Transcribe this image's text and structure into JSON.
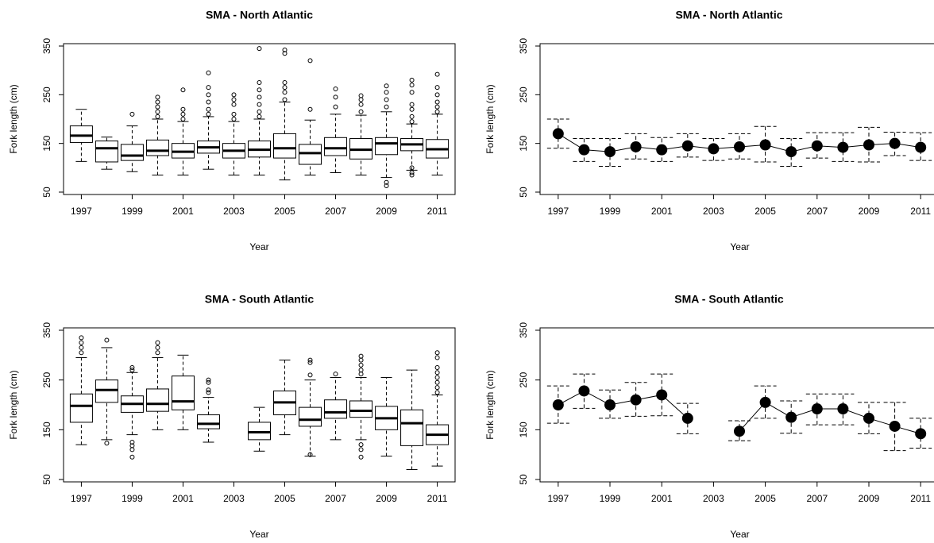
{
  "chart_data": [
    {
      "type": "box",
      "title": "SMA - North Atlantic",
      "x_label": "Year",
      "y_label": "Fork length (cm)",
      "xlim": [
        1996.3,
        2011.7
      ],
      "xticks": [
        1997,
        1999,
        2001,
        2003,
        2005,
        2007,
        2009,
        2011
      ],
      "ylim": [
        50,
        350
      ],
      "yticks": [
        50,
        150,
        250,
        350
      ],
      "x": [
        1997,
        1998,
        1999,
        2000,
        2001,
        2002,
        2003,
        2004,
        2005,
        2006,
        2007,
        2008,
        2009,
        2010,
        2011
      ],
      "min": [
        113,
        97,
        92,
        85,
        85,
        97,
        85,
        85,
        75,
        85,
        90,
        85,
        80,
        95,
        85
      ],
      "q1": [
        152,
        112,
        115,
        125,
        120,
        130,
        120,
        122,
        120,
        107,
        125,
        118,
        127,
        135,
        120
      ],
      "median": [
        166,
        140,
        125,
        135,
        133,
        142,
        135,
        137,
        140,
        130,
        140,
        137,
        150,
        148,
        138
      ],
      "q3": [
        186,
        155,
        148,
        157,
        150,
        155,
        150,
        155,
        170,
        148,
        162,
        160,
        162,
        160,
        158
      ],
      "max": [
        220,
        163,
        186,
        200,
        195,
        205,
        195,
        200,
        235,
        198,
        210,
        208,
        215,
        190,
        210
      ],
      "outliers": [
        [],
        [],
        [
          210
        ],
        [
          205,
          215,
          225,
          235,
          245
        ],
        [
          200,
          210,
          220,
          260
        ],
        [
          210,
          220,
          235,
          250,
          265,
          295
        ],
        [
          200,
          210,
          230,
          240,
          250
        ],
        [
          205,
          215,
          230,
          245,
          260,
          275,
          345
        ],
        [
          240,
          255,
          265,
          275,
          335,
          342
        ],
        [
          220,
          320
        ],
        [
          225,
          245,
          262
        ],
        [
          215,
          230,
          240,
          248
        ],
        [
          63,
          70,
          225,
          240,
          255,
          268
        ],
        [
          85,
          90,
          100,
          195,
          205,
          220,
          230,
          255,
          270,
          280
        ],
        [
          215,
          225,
          235,
          250,
          265,
          292
        ]
      ]
    },
    {
      "type": "errorbar",
      "title": "SMA - North Atlantic",
      "x_label": "Year",
      "y_label": "Fork length (cm)",
      "xlim": [
        1996.3,
        2011.7
      ],
      "xticks": [
        1997,
        1999,
        2001,
        2003,
        2005,
        2007,
        2009,
        2011
      ],
      "ylim": [
        50,
        350
      ],
      "yticks": [
        50,
        150,
        250,
        350
      ],
      "x": [
        1997,
        1998,
        1999,
        2000,
        2001,
        2002,
        2003,
        2004,
        2005,
        2006,
        2007,
        2008,
        2009,
        2010,
        2011
      ],
      "values": [
        170,
        137,
        133,
        143,
        137,
        145,
        139,
        143,
        147,
        133,
        145,
        142,
        147,
        150,
        142
      ],
      "lower": [
        140,
        113,
        103,
        118,
        113,
        122,
        115,
        118,
        112,
        103,
        120,
        113,
        112,
        125,
        115
      ],
      "upper": [
        200,
        160,
        160,
        170,
        162,
        170,
        160,
        170,
        185,
        160,
        172,
        172,
        183,
        173,
        172
      ]
    },
    {
      "type": "box",
      "title": "SMA - South Atlantic",
      "x_label": "Year",
      "y_label": "Fork length (cm)",
      "xlim": [
        1996.3,
        2011.7
      ],
      "xticks": [
        1997,
        1999,
        2001,
        2003,
        2005,
        2007,
        2009,
        2011
      ],
      "ylim": [
        50,
        350
      ],
      "yticks": [
        50,
        150,
        250,
        350
      ],
      "x": [
        1997,
        1998,
        1999,
        2000,
        2001,
        2002,
        2003,
        2004,
        2005,
        2006,
        2007,
        2008,
        2009,
        2010,
        2011
      ],
      "min": [
        120,
        130,
        140,
        150,
        150,
        125,
        null,
        107,
        140,
        97,
        130,
        130,
        97,
        70,
        77
      ],
      "q1": [
        165,
        205,
        185,
        187,
        190,
        152,
        null,
        130,
        180,
        157,
        173,
        175,
        150,
        118,
        120
      ],
      "median": [
        198,
        230,
        202,
        202,
        207,
        162,
        null,
        145,
        205,
        170,
        185,
        188,
        173,
        163,
        140
      ],
      "q3": [
        222,
        250,
        218,
        232,
        258,
        180,
        null,
        165,
        228,
        195,
        210,
        208,
        197,
        190,
        160
      ],
      "max": [
        295,
        315,
        265,
        295,
        300,
        215,
        null,
        195,
        290,
        250,
        255,
        255,
        255,
        270,
        220
      ],
      "outliers": [
        [
          305,
          315,
          325,
          335
        ],
        [
          123,
          330
        ],
        [
          95,
          110,
          118,
          125,
          270,
          275
        ],
        [
          305,
          315,
          325
        ],
        [],
        [
          225,
          230,
          245,
          250
        ],
        [],
        [],
        [],
        [
          100,
          260,
          285,
          290
        ],
        [
          262
        ],
        [
          95,
          110,
          120,
          262,
          270,
          280,
          290,
          298
        ],
        [],
        [],
        [
          225,
          235,
          245,
          255,
          265,
          275,
          295,
          305
        ]
      ]
    },
    {
      "type": "errorbar",
      "title": "SMA - South Atlantic",
      "x_label": "Year",
      "y_label": "Fork length (cm)",
      "xlim": [
        1996.3,
        2011.7
      ],
      "xticks": [
        1997,
        1999,
        2001,
        2003,
        2005,
        2007,
        2009,
        2011
      ],
      "ylim": [
        50,
        350
      ],
      "yticks": [
        50,
        150,
        250,
        350
      ],
      "x": [
        1997,
        1998,
        1999,
        2000,
        2001,
        2002,
        2003,
        2004,
        2005,
        2006,
        2007,
        2008,
        2009,
        2010,
        2011
      ],
      "values": [
        200,
        228,
        200,
        210,
        220,
        173,
        null,
        147,
        205,
        175,
        192,
        192,
        173,
        157,
        142
      ],
      "lower": [
        163,
        193,
        173,
        177,
        178,
        142,
        null,
        128,
        173,
        143,
        160,
        160,
        142,
        108,
        113
      ],
      "upper": [
        238,
        262,
        230,
        245,
        262,
        203,
        null,
        168,
        238,
        208,
        222,
        222,
        205,
        205,
        173
      ]
    }
  ]
}
